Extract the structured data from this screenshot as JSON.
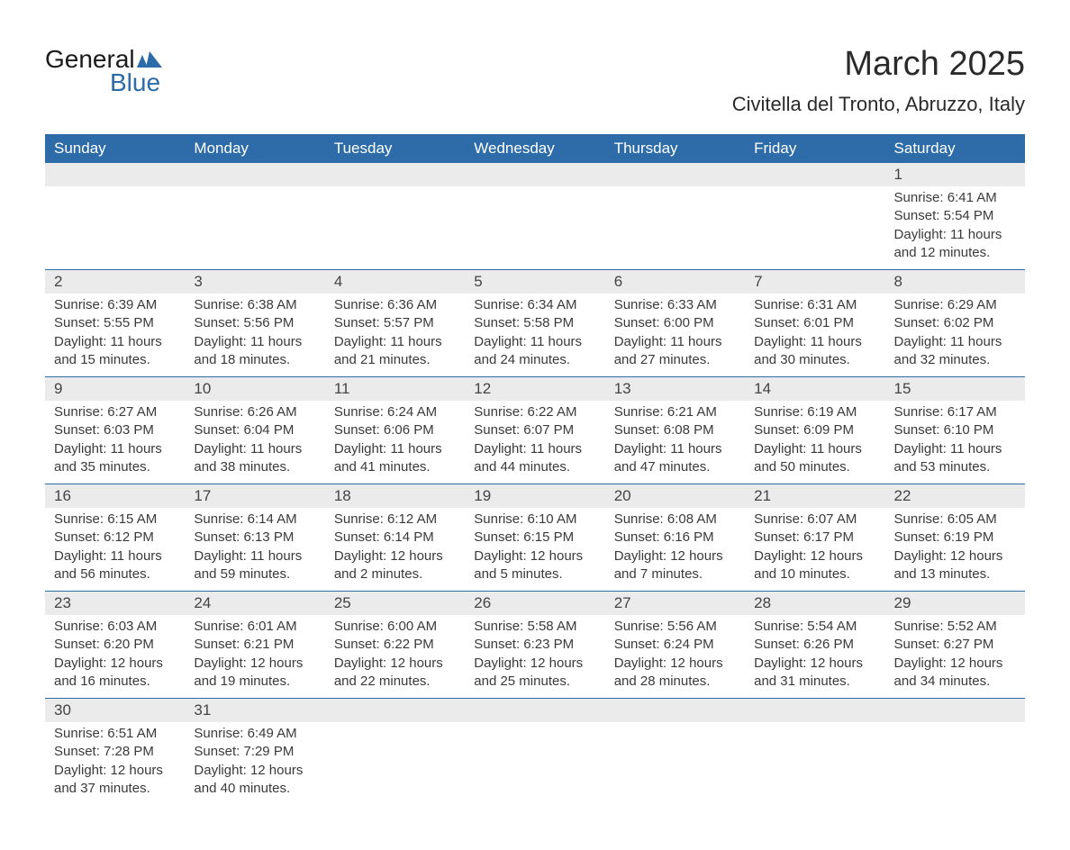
{
  "logo": {
    "general": "General",
    "blue": "Blue"
  },
  "title": "March 2025",
  "location": "Civitella del Tronto, Abruzzo, Italy",
  "colors": {
    "header_bg": "#2d6ca8",
    "header_text": "#ffffff",
    "day_number_bg": "#ebebeb",
    "text_color": "#3a3a3a",
    "border_color": "#2d6ca8",
    "logo_blue": "#2d6ca8"
  },
  "days_of_week": [
    "Sunday",
    "Monday",
    "Tuesday",
    "Wednesday",
    "Thursday",
    "Friday",
    "Saturday"
  ],
  "weeks": [
    [
      null,
      null,
      null,
      null,
      null,
      null,
      {
        "num": "1",
        "sunrise": "Sunrise: 6:41 AM",
        "sunset": "Sunset: 5:54 PM",
        "daylight1": "Daylight: 11 hours",
        "daylight2": "and 12 minutes."
      }
    ],
    [
      {
        "num": "2",
        "sunrise": "Sunrise: 6:39 AM",
        "sunset": "Sunset: 5:55 PM",
        "daylight1": "Daylight: 11 hours",
        "daylight2": "and 15 minutes."
      },
      {
        "num": "3",
        "sunrise": "Sunrise: 6:38 AM",
        "sunset": "Sunset: 5:56 PM",
        "daylight1": "Daylight: 11 hours",
        "daylight2": "and 18 minutes."
      },
      {
        "num": "4",
        "sunrise": "Sunrise: 6:36 AM",
        "sunset": "Sunset: 5:57 PM",
        "daylight1": "Daylight: 11 hours",
        "daylight2": "and 21 minutes."
      },
      {
        "num": "5",
        "sunrise": "Sunrise: 6:34 AM",
        "sunset": "Sunset: 5:58 PM",
        "daylight1": "Daylight: 11 hours",
        "daylight2": "and 24 minutes."
      },
      {
        "num": "6",
        "sunrise": "Sunrise: 6:33 AM",
        "sunset": "Sunset: 6:00 PM",
        "daylight1": "Daylight: 11 hours",
        "daylight2": "and 27 minutes."
      },
      {
        "num": "7",
        "sunrise": "Sunrise: 6:31 AM",
        "sunset": "Sunset: 6:01 PM",
        "daylight1": "Daylight: 11 hours",
        "daylight2": "and 30 minutes."
      },
      {
        "num": "8",
        "sunrise": "Sunrise: 6:29 AM",
        "sunset": "Sunset: 6:02 PM",
        "daylight1": "Daylight: 11 hours",
        "daylight2": "and 32 minutes."
      }
    ],
    [
      {
        "num": "9",
        "sunrise": "Sunrise: 6:27 AM",
        "sunset": "Sunset: 6:03 PM",
        "daylight1": "Daylight: 11 hours",
        "daylight2": "and 35 minutes."
      },
      {
        "num": "10",
        "sunrise": "Sunrise: 6:26 AM",
        "sunset": "Sunset: 6:04 PM",
        "daylight1": "Daylight: 11 hours",
        "daylight2": "and 38 minutes."
      },
      {
        "num": "11",
        "sunrise": "Sunrise: 6:24 AM",
        "sunset": "Sunset: 6:06 PM",
        "daylight1": "Daylight: 11 hours",
        "daylight2": "and 41 minutes."
      },
      {
        "num": "12",
        "sunrise": "Sunrise: 6:22 AM",
        "sunset": "Sunset: 6:07 PM",
        "daylight1": "Daylight: 11 hours",
        "daylight2": "and 44 minutes."
      },
      {
        "num": "13",
        "sunrise": "Sunrise: 6:21 AM",
        "sunset": "Sunset: 6:08 PM",
        "daylight1": "Daylight: 11 hours",
        "daylight2": "and 47 minutes."
      },
      {
        "num": "14",
        "sunrise": "Sunrise: 6:19 AM",
        "sunset": "Sunset: 6:09 PM",
        "daylight1": "Daylight: 11 hours",
        "daylight2": "and 50 minutes."
      },
      {
        "num": "15",
        "sunrise": "Sunrise: 6:17 AM",
        "sunset": "Sunset: 6:10 PM",
        "daylight1": "Daylight: 11 hours",
        "daylight2": "and 53 minutes."
      }
    ],
    [
      {
        "num": "16",
        "sunrise": "Sunrise: 6:15 AM",
        "sunset": "Sunset: 6:12 PM",
        "daylight1": "Daylight: 11 hours",
        "daylight2": "and 56 minutes."
      },
      {
        "num": "17",
        "sunrise": "Sunrise: 6:14 AM",
        "sunset": "Sunset: 6:13 PM",
        "daylight1": "Daylight: 11 hours",
        "daylight2": "and 59 minutes."
      },
      {
        "num": "18",
        "sunrise": "Sunrise: 6:12 AM",
        "sunset": "Sunset: 6:14 PM",
        "daylight1": "Daylight: 12 hours",
        "daylight2": "and 2 minutes."
      },
      {
        "num": "19",
        "sunrise": "Sunrise: 6:10 AM",
        "sunset": "Sunset: 6:15 PM",
        "daylight1": "Daylight: 12 hours",
        "daylight2": "and 5 minutes."
      },
      {
        "num": "20",
        "sunrise": "Sunrise: 6:08 AM",
        "sunset": "Sunset: 6:16 PM",
        "daylight1": "Daylight: 12 hours",
        "daylight2": "and 7 minutes."
      },
      {
        "num": "21",
        "sunrise": "Sunrise: 6:07 AM",
        "sunset": "Sunset: 6:17 PM",
        "daylight1": "Daylight: 12 hours",
        "daylight2": "and 10 minutes."
      },
      {
        "num": "22",
        "sunrise": "Sunrise: 6:05 AM",
        "sunset": "Sunset: 6:19 PM",
        "daylight1": "Daylight: 12 hours",
        "daylight2": "and 13 minutes."
      }
    ],
    [
      {
        "num": "23",
        "sunrise": "Sunrise: 6:03 AM",
        "sunset": "Sunset: 6:20 PM",
        "daylight1": "Daylight: 12 hours",
        "daylight2": "and 16 minutes."
      },
      {
        "num": "24",
        "sunrise": "Sunrise: 6:01 AM",
        "sunset": "Sunset: 6:21 PM",
        "daylight1": "Daylight: 12 hours",
        "daylight2": "and 19 minutes."
      },
      {
        "num": "25",
        "sunrise": "Sunrise: 6:00 AM",
        "sunset": "Sunset: 6:22 PM",
        "daylight1": "Daylight: 12 hours",
        "daylight2": "and 22 minutes."
      },
      {
        "num": "26",
        "sunrise": "Sunrise: 5:58 AM",
        "sunset": "Sunset: 6:23 PM",
        "daylight1": "Daylight: 12 hours",
        "daylight2": "and 25 minutes."
      },
      {
        "num": "27",
        "sunrise": "Sunrise: 5:56 AM",
        "sunset": "Sunset: 6:24 PM",
        "daylight1": "Daylight: 12 hours",
        "daylight2": "and 28 minutes."
      },
      {
        "num": "28",
        "sunrise": "Sunrise: 5:54 AM",
        "sunset": "Sunset: 6:26 PM",
        "daylight1": "Daylight: 12 hours",
        "daylight2": "and 31 minutes."
      },
      {
        "num": "29",
        "sunrise": "Sunrise: 5:52 AM",
        "sunset": "Sunset: 6:27 PM",
        "daylight1": "Daylight: 12 hours",
        "daylight2": "and 34 minutes."
      }
    ],
    [
      {
        "num": "30",
        "sunrise": "Sunrise: 6:51 AM",
        "sunset": "Sunset: 7:28 PM",
        "daylight1": "Daylight: 12 hours",
        "daylight2": "and 37 minutes."
      },
      {
        "num": "31",
        "sunrise": "Sunrise: 6:49 AM",
        "sunset": "Sunset: 7:29 PM",
        "daylight1": "Daylight: 12 hours",
        "daylight2": "and 40 minutes."
      },
      null,
      null,
      null,
      null,
      null
    ]
  ]
}
